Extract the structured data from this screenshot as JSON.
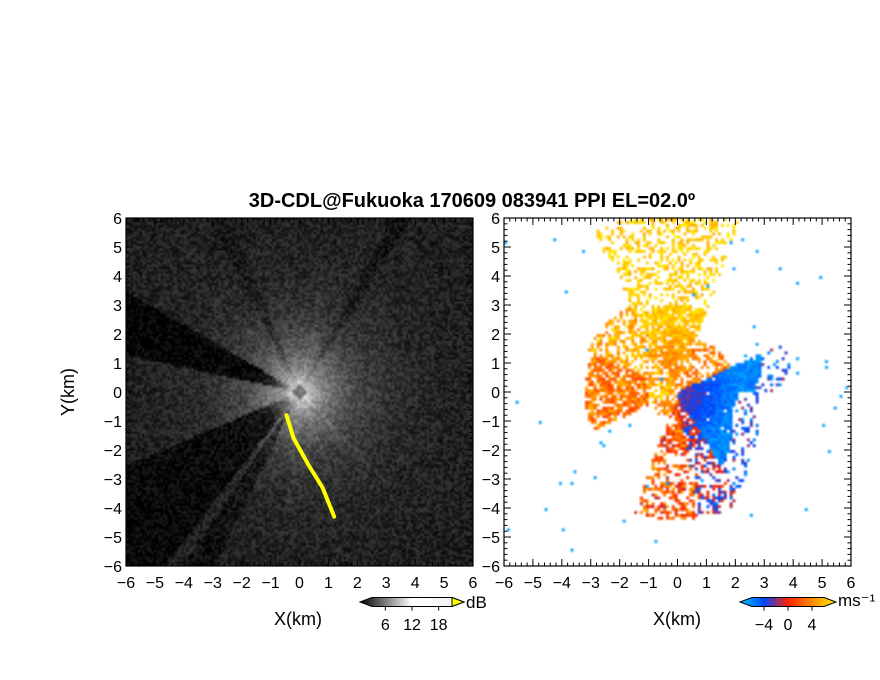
{
  "title": "3D-CDL@Fukuoka 170609 083941 PPI EL=02.0º",
  "chart_data": [
    {
      "type": "heatmap",
      "field": "reflectivity / SNR (PPI scan)",
      "xlabel": "X(km)",
      "ylabel": "Y(km)",
      "xlim": [
        -6,
        6
      ],
      "ylim": [
        -6,
        6
      ],
      "x_ticks": [
        "−6",
        "−5",
        "−4",
        "−3",
        "−2",
        "−1",
        "0",
        "1",
        "2",
        "3",
        "4",
        "5",
        "6"
      ],
      "y_ticks": [
        "6",
        "5",
        "4",
        "3",
        "2",
        "1",
        "0",
        "−1",
        "−2",
        "−3",
        "−4",
        "−5",
        "−6"
      ],
      "colorbar": {
        "unit": "dB",
        "tick_labels": [
          "6",
          "12",
          "18"
        ],
        "range": [
          3,
          21
        ],
        "colors": [
          "#000000",
          "#ffffff"
        ],
        "overflow_color": "#ffff00"
      },
      "highlight_feature": {
        "color": "#ffff00",
        "path_km": [
          [
            -0.45,
            -0.8
          ],
          [
            -0.2,
            -1.6
          ],
          [
            0.3,
            -2.5
          ],
          [
            0.8,
            -3.3
          ],
          [
            1.2,
            -4.3
          ]
        ]
      }
    },
    {
      "type": "heatmap",
      "field": "Doppler radial velocity",
      "xlabel": "X(km)",
      "xlim": [
        -6,
        6
      ],
      "ylim": [
        -6,
        6
      ],
      "x_ticks": [
        "−6",
        "−5",
        "−4",
        "−3",
        "−2",
        "−1",
        "0",
        "1",
        "2",
        "3",
        "4",
        "5",
        "6"
      ],
      "y_ticks": [
        "6",
        "5",
        "4",
        "3",
        "2",
        "1",
        "0",
        "−1",
        "−2",
        "−3",
        "−4",
        "−5",
        "−6"
      ],
      "colorbar": {
        "unit": "ms⁻¹",
        "tick_labels": [
          "−4",
          "0",
          "4"
        ],
        "range": [
          -6,
          6
        ],
        "colors": [
          "#00ccff",
          "#0044ff",
          "#ff2200",
          "#ff8800",
          "#ffee00"
        ]
      },
      "echo_regions": [
        {
          "sector": "east",
          "velocity": -4,
          "center_km": [
            2.2,
            -0.5
          ],
          "radius_km": 2.8
        },
        {
          "sector": "north",
          "velocity": 4,
          "center_km": [
            -0.2,
            3.5
          ],
          "radius_km": 2.5
        },
        {
          "sector": "west",
          "velocity": 2,
          "center_km": [
            -2.0,
            0.0
          ],
          "radius_km": 1.4
        },
        {
          "sector": "south",
          "velocity": 1,
          "center_km": [
            0.6,
            -2.5
          ],
          "radius_km": 1.6
        }
      ]
    }
  ]
}
